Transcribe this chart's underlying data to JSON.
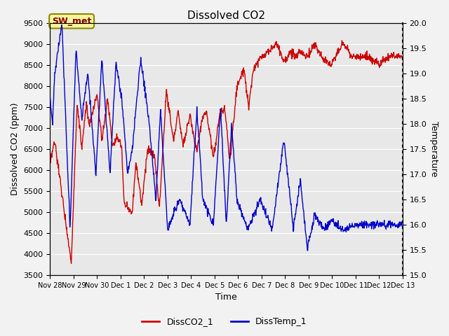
{
  "title": "Dissolved CO2",
  "xlabel": "Time",
  "ylabel_left": "Dissolved CO2 (ppm)",
  "ylabel_right": "Temperature",
  "ylim_left": [
    3500,
    9500
  ],
  "ylim_right": [
    15.0,
    20.0
  ],
  "yticks_left": [
    3500,
    4000,
    4500,
    5000,
    5500,
    6000,
    6500,
    7000,
    7500,
    8000,
    8500,
    9000,
    9500
  ],
  "yticks_right": [
    15.0,
    15.5,
    16.0,
    16.5,
    17.0,
    17.5,
    18.0,
    18.5,
    19.0,
    19.5,
    20.0
  ],
  "xtick_labels": [
    "Nov 28",
    "Nov 29",
    "Nov 30",
    "Dec 1",
    "Dec 2",
    "Dec 3",
    "Dec 4",
    "Dec 5",
    "Dec 6",
    "Dec 7",
    "Dec 8",
    "Dec 9",
    "Dec 10",
    "Dec 11",
    "Dec 12",
    "Dec 13"
  ],
  "legend_labels": [
    "DissCO2_1",
    "DissTemp_1"
  ],
  "color_co2": "#cc0000",
  "color_temp": "#0000cc",
  "background_color": "#e8e8e8",
  "grid_color": "#ffffff",
  "title_fontsize": 11,
  "axis_fontsize": 9,
  "tick_fontsize": 8,
  "annotation_text": "SW_met"
}
